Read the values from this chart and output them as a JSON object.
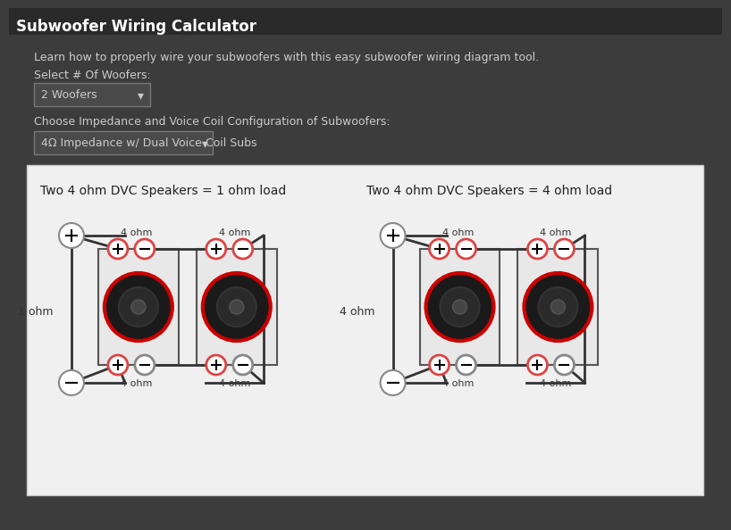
{
  "bg_color": "#3c3c3c",
  "title": "Subwoofer Wiring Calculator",
  "subtitle": "Learn how to properly wire your subwoofers with this easy subwoofer wiring diagram tool.",
  "label_woofers": "Select # Of Woofers:",
  "dropdown_woofers": "2 Woofers",
  "label_impedance": "Choose Impedance and Voice Coil Configuration of Subwoofers:",
  "dropdown_impedance": "4Ω Impedance w/ Dual Voice Coil Subs",
  "diagram_bg": "#f0f0f0",
  "diagram_title_left": "Two 4 ohm DVC Speakers = 1 ohm load",
  "diagram_title_right": "Two 4 ohm DVC Speakers = 4 ohm load",
  "left_label": "1 ohm",
  "right_label": "4 ohm",
  "ohm_labels": [
    "4 ohm",
    "4 ohm",
    "4 ohm",
    "4 ohm"
  ],
  "text_color": "#e0e0e0",
  "text_color_dark": "#222222",
  "dropdown_bg": "#555555",
  "dropdown_border": "#888888"
}
